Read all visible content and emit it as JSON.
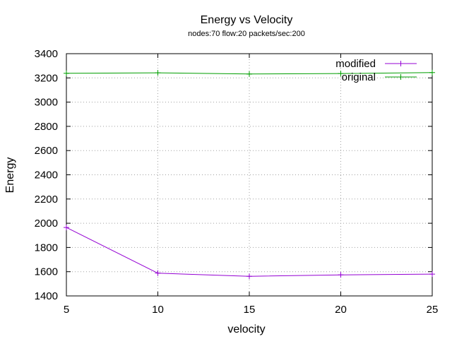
{
  "chart_data": {
    "type": "line",
    "title": "Energy vs Velocity",
    "subtitle": "nodes:70  flow:20  packets/sec:200",
    "xlabel": "velocity",
    "ylabel": "Energy",
    "xlim": [
      5,
      25
    ],
    "ylim": [
      1400,
      3400
    ],
    "xticks": [
      5,
      10,
      15,
      20,
      25
    ],
    "yticks": [
      1400,
      1600,
      1800,
      2000,
      2200,
      2400,
      2600,
      2800,
      3000,
      3200,
      3400
    ],
    "grid": true,
    "legend_position": "top-right",
    "x": [
      5,
      10,
      15,
      20,
      25
    ],
    "series": [
      {
        "name": "modified",
        "color": "#9400d3",
        "values": [
          1965,
          1588,
          1562,
          1574,
          1580
        ]
      },
      {
        "name": "original",
        "color": "#009e00",
        "values": [
          3238,
          3242,
          3232,
          3236,
          3244
        ]
      }
    ]
  }
}
